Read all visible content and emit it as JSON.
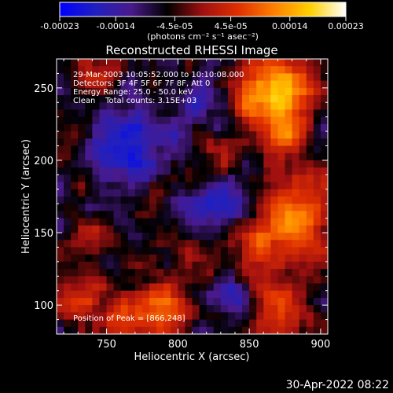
{
  "chart_data": {
    "type": "heatmap",
    "title": "Reconstructed RHESSI Image",
    "xlabel": "Heliocentric X (arcsec)",
    "ylabel": "Heliocentric Y (arcsec)",
    "xlim": [
      715,
      905
    ],
    "ylim": [
      80,
      270
    ],
    "x_ticks": [
      750,
      800,
      850,
      900
    ],
    "y_ticks": [
      100,
      150,
      200,
      250
    ],
    "colorbar": {
      "range": [
        -0.00023,
        0.00023
      ],
      "tick_values": [
        -0.00023,
        -0.00014,
        -4.5e-05,
        4.5e-05,
        0.00014,
        0.00023
      ],
      "tick_labels": [
        "-0.00023",
        "-0.00014",
        "-4.5e-05",
        "4.5e-05",
        "0.00014",
        "0.00023"
      ],
      "units_label": "(photons cm⁻² s⁻¹ asec⁻²)",
      "colors": [
        "#0000ff",
        "#2020c0",
        "#4a1a8a",
        "#000000",
        "#a01010",
        "#e03000",
        "#ff8000",
        "#ffd000",
        "#ffffff"
      ]
    },
    "annotations": [
      "29-Mar-2003 10:05:52.000 to 10:10:08.000",
      "Detectors: 3F 4F 5F 6F 7F 8F, Att 0",
      "Energy Range: 25.0 - 50.0 keV",
      "Clean    Total counts: 3.15E+03"
    ],
    "peak_label": "Position of Peak = [866,248]",
    "grid_size": [
      38,
      38
    ],
    "hot_regions": [
      {
        "x": 866,
        "y": 248,
        "value": 0.00023,
        "sigma": 18
      },
      {
        "x": 875,
        "y": 215,
        "value": 0.00016,
        "sigma": 10
      },
      {
        "x": 885,
        "y": 160,
        "value": 0.00018,
        "sigma": 20
      },
      {
        "x": 850,
        "y": 135,
        "value": 0.00012,
        "sigma": 12
      },
      {
        "x": 870,
        "y": 100,
        "value": 0.00012,
        "sigma": 14
      },
      {
        "x": 790,
        "y": 100,
        "value": 0.00015,
        "sigma": 14
      },
      {
        "x": 730,
        "y": 105,
        "value": 0.00012,
        "sigma": 12
      },
      {
        "x": 760,
        "y": 90,
        "value": 0.0001,
        "sigma": 10
      },
      {
        "x": 735,
        "y": 150,
        "value": 8e-05,
        "sigma": 9
      },
      {
        "x": 745,
        "y": 255,
        "value": 7e-05,
        "sigma": 10
      },
      {
        "x": 790,
        "y": 180,
        "value": 6e-05,
        "sigma": 8
      },
      {
        "x": 825,
        "y": 210,
        "value": 6e-05,
        "sigma": 8
      },
      {
        "x": 810,
        "y": 140,
        "value": 6e-05,
        "sigma": 8
      }
    ],
    "cold_regions": [
      {
        "x": 770,
        "y": 205,
        "value": -0.00012,
        "sigma": 22
      },
      {
        "x": 830,
        "y": 165,
        "value": -9e-05,
        "sigma": 14
      },
      {
        "x": 815,
        "y": 240,
        "value": -8e-05,
        "sigma": 14
      },
      {
        "x": 840,
        "y": 110,
        "value": -8e-05,
        "sigma": 12
      }
    ]
  },
  "footer": {
    "timestamp": "30-Apr-2022 08:22"
  }
}
